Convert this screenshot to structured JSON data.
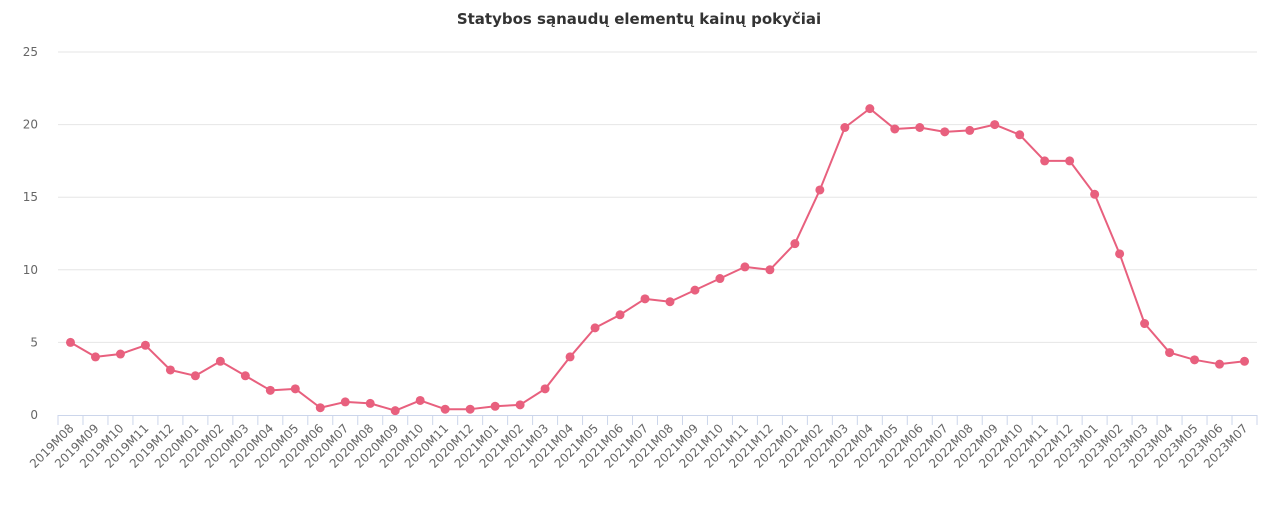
{
  "chart_data": {
    "type": "line",
    "title": "Statybos sąnaudų elementų kainų pokyčiai",
    "xlabel": "",
    "ylabel": "",
    "ylim": [
      0,
      25
    ],
    "yticks": [
      0,
      5,
      10,
      15,
      20,
      25
    ],
    "grid": true,
    "legend": "none",
    "colors": {
      "series": "#e8607e",
      "grid": "#e6e6e6",
      "axis": "#ccd6eb"
    },
    "categories": [
      "2019M08",
      "2019M09",
      "2019M10",
      "2019M11",
      "2019M12",
      "2020M01",
      "2020M02",
      "2020M03",
      "2020M04",
      "2020M05",
      "2020M06",
      "2020M07",
      "2020M08",
      "2020M09",
      "2020M10",
      "2020M11",
      "2020M12",
      "2021M01",
      "2021M02",
      "2021M03",
      "2021M04",
      "2021M05",
      "2021M06",
      "2021M07",
      "2021M08",
      "2021M09",
      "2021M10",
      "2021M11",
      "2021M12",
      "2022M01",
      "2022M02",
      "2022M03",
      "2022M04",
      "2022M05",
      "2022M06",
      "2022M07",
      "2022M08",
      "2022M09",
      "2022M10",
      "2022M11",
      "2022M12",
      "2023M01",
      "2023M02",
      "2023M03",
      "2023M04",
      "2023M05",
      "2023M06",
      "2023M07"
    ],
    "series": [
      {
        "values": [
          5.0,
          4.0,
          4.2,
          4.8,
          3.1,
          2.7,
          3.7,
          2.7,
          1.7,
          1.8,
          0.5,
          0.9,
          0.8,
          0.3,
          1.0,
          0.4,
          0.4,
          0.6,
          0.7,
          1.8,
          4.0,
          6.0,
          6.9,
          8.0,
          7.8,
          8.6,
          9.4,
          10.2,
          10.0,
          11.8,
          15.5,
          19.8,
          21.1,
          19.7,
          19.8,
          19.5,
          19.6,
          20.0,
          19.3,
          17.5,
          17.5,
          15.2,
          11.1,
          6.3,
          4.3,
          3.8,
          3.5,
          3.7
        ]
      }
    ]
  }
}
